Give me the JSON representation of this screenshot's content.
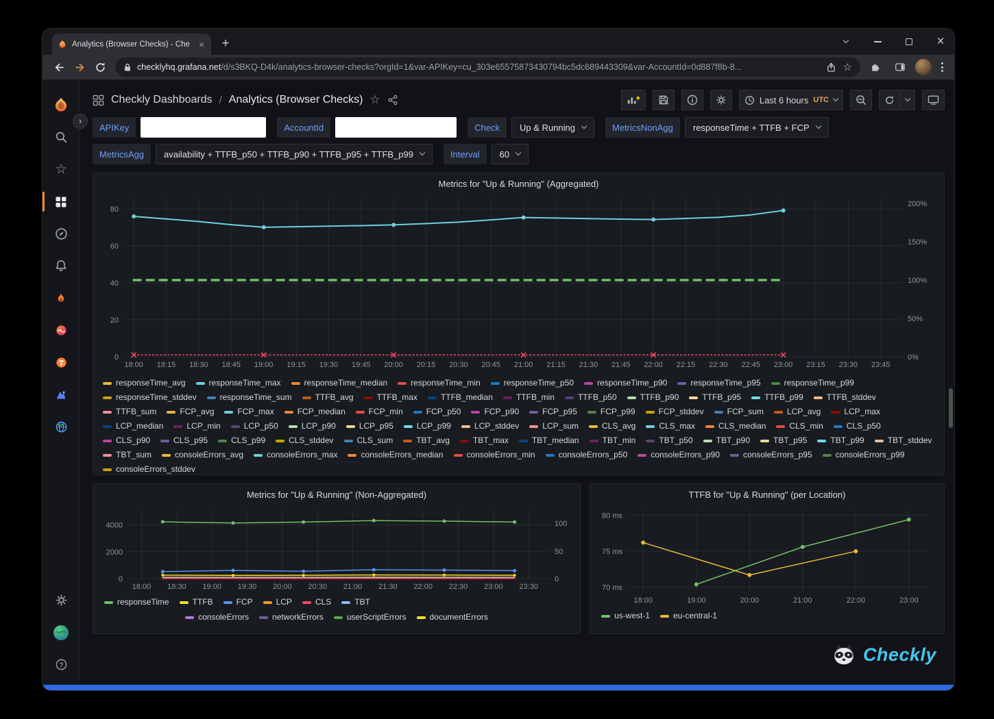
{
  "browser": {
    "tab_title": "Analytics (Browser Checks) - Che",
    "new_tab_label": "+",
    "url_domain": "checklyhq.grafana.net",
    "url_path": "/d/s3BKQ-D4k/analytics-browser-checks?orgId=1&var-APIKey=cu_303e65575873430794bc5dc689443309&var-AccountId=0d887f8b-8..."
  },
  "header": {
    "breadcrumb_root": "Checkly Dashboards",
    "breadcrumb_sep": "/",
    "breadcrumb_current": "Analytics (Browser Checks)",
    "time_range_label": "Last 6 hours",
    "timezone": "UTC"
  },
  "variables": {
    "apikey_label": "APIKey",
    "apikey_value": "",
    "accountid_label": "AccountId",
    "accountid_value": "",
    "check_label": "Check",
    "check_value": "Up & Running",
    "metricsnonagg_label": "MetricsNonAgg",
    "metricsnonagg_value": "responseTime + TTFB + FCP",
    "metricsagg_label": "MetricsAgg",
    "metricsagg_value": "availability + TTFB_p50 + TTFB_p90 + TTFB_p95 + TTFB_p99",
    "interval_label": "Interval",
    "interval_value": "60"
  },
  "footer": {
    "brand": "Checkly"
  },
  "colors": {
    "accent_orange": "#FF8833",
    "label_blue": "#6E9FFF",
    "checkly_cyan": "#45C6F0",
    "bottom_strip_blue": "#2F6BE8"
  },
  "chart_data": [
    {
      "type": "line",
      "title": "Metrics for \"Up & Running\" (Aggregated)",
      "xlim": [
        17.92,
        23.92
      ],
      "ylim": [
        0,
        86
      ],
      "ml": 36,
      "mr": 52,
      "xticks": [
        {
          "v": 18,
          "t": "18:00"
        },
        {
          "v": 18.25,
          "t": "18:15"
        },
        {
          "v": 18.5,
          "t": "18:30"
        },
        {
          "v": 18.75,
          "t": "18:45"
        },
        {
          "v": 19,
          "t": "19:00"
        },
        {
          "v": 19.25,
          "t": "19:15"
        },
        {
          "v": 19.5,
          "t": "19:30"
        },
        {
          "v": 19.75,
          "t": "19:45"
        },
        {
          "v": 20,
          "t": "20:00"
        },
        {
          "v": 20.25,
          "t": "20:15"
        },
        {
          "v": 20.5,
          "t": "20:30"
        },
        {
          "v": 20.75,
          "t": "20:45"
        },
        {
          "v": 21,
          "t": "21:00"
        },
        {
          "v": 21.25,
          "t": "21:15"
        },
        {
          "v": 21.5,
          "t": "21:30"
        },
        {
          "v": 21.75,
          "t": "21:45"
        },
        {
          "v": 22,
          "t": "22:00"
        },
        {
          "v": 22.25,
          "t": "22:15"
        },
        {
          "v": 22.5,
          "t": "22:30"
        },
        {
          "v": 22.75,
          "t": "22:45"
        },
        {
          "v": 23,
          "t": "23:00"
        },
        {
          "v": 23.25,
          "t": "23:15"
        },
        {
          "v": 23.5,
          "t": "23:30"
        },
        {
          "v": 23.75,
          "t": "23:45"
        }
      ],
      "yticks_left": [
        {
          "v": 0,
          "t": "0"
        },
        {
          "v": 20,
          "t": "20"
        },
        {
          "v": 40,
          "t": "40"
        },
        {
          "v": 60,
          "t": "60"
        },
        {
          "v": 80,
          "t": "80"
        }
      ],
      "yticks_right": [
        {
          "v": 0,
          "t": "0%"
        },
        {
          "v": 20.75,
          "t": "50%"
        },
        {
          "v": 41.5,
          "t": "100%"
        },
        {
          "v": 62.25,
          "t": "150%"
        },
        {
          "v": 83,
          "t": "200%"
        }
      ],
      "series": [
        {
          "name": "responseTime_avg",
          "color": "#6ED0E0",
          "width": 2,
          "points": [
            [
              18,
              76
            ],
            [
              18.25,
              74.6
            ],
            [
              18.5,
              73.2
            ],
            [
              18.75,
              71.5
            ],
            [
              19,
              70.1
            ],
            [
              19.25,
              70.4
            ],
            [
              19.5,
              70.7
            ],
            [
              19.75,
              71
            ],
            [
              20,
              71.4
            ],
            [
              20.25,
              72.1
            ],
            [
              20.5,
              72.9
            ],
            [
              20.75,
              74.1
            ],
            [
              21,
              75.4
            ],
            [
              21.25,
              75.1
            ],
            [
              21.5,
              74.8
            ],
            [
              21.75,
              74.5
            ],
            [
              22,
              74.3
            ],
            [
              22.25,
              74.9
            ],
            [
              22.5,
              75.5
            ],
            [
              22.75,
              76.8
            ],
            [
              23,
              79.2
            ]
          ],
          "markers": [
            [
              18,
              76
            ],
            [
              19,
              70.1
            ],
            [
              20,
              71.4
            ],
            [
              21,
              75.4
            ],
            [
              22,
              74.3
            ],
            [
              23,
              79.2
            ]
          ],
          "marker": "dot",
          "r": 3
        },
        {
          "name": "availability",
          "color": "#73BF69",
          "width": 3.5,
          "dash": [
            10,
            9
          ],
          "points": [
            [
              18,
              41.5
            ],
            [
              23,
              41.5
            ]
          ]
        },
        {
          "name": "consoleErrors",
          "color": "#F2495C",
          "width": 1.5,
          "dash": [
            2,
            3.5
          ],
          "points": [
            [
              18,
              1
            ],
            [
              23,
              1
            ]
          ],
          "markers": [
            [
              18,
              1
            ],
            [
              19,
              1
            ],
            [
              20,
              1
            ],
            [
              21,
              1
            ],
            [
              22,
              1
            ],
            [
              23,
              1
            ]
          ],
          "marker": "x"
        }
      ],
      "palette": [
        "#EAB839",
        "#6ED0E0",
        "#EF843C",
        "#E24D42",
        "#1F78C1",
        "#BA43A9",
        "#705DA0",
        "#508642",
        "#CCA300",
        "#447EBC",
        "#C15C17",
        "#890F02",
        "#0A437C",
        "#6D1F62",
        "#584477",
        "#B7DBAB",
        "#F4D598",
        "#70DBED",
        "#F9BA8F",
        "#F29191"
      ],
      "legend": [
        "responseTime_avg",
        "responseTime_max",
        "responseTime_median",
        "responseTime_min",
        "responseTime_p50",
        "responseTime_p90",
        "responseTime_p95",
        "responseTime_p99",
        "responseTime_stddev",
        "responseTime_sum",
        "TTFB_avg",
        "TTFB_max",
        "TTFB_median",
        "TTFB_min",
        "TTFB_p50",
        "TTFB_p90",
        "TTFB_p95",
        "TTFB_p99",
        "TTFB_stddev",
        "TTFB_sum",
        "FCP_avg",
        "FCP_max",
        "FCP_median",
        "FCP_min",
        "FCP_p50",
        "FCP_p90",
        "FCP_p95",
        "FCP_p99",
        "FCP_stddev",
        "FCP_sum",
        "LCP_avg",
        "LCP_max",
        "LCP_median",
        "LCP_min",
        "LCP_p50",
        "LCP_p90",
        "LCP_p95",
        "LCP_p99",
        "LCP_stddev",
        "LCP_sum",
        "CLS_avg",
        "CLS_max",
        "CLS_median",
        "CLS_min",
        "CLS_p50",
        "CLS_p90",
        "CLS_p95",
        "CLS_p99",
        "CLS_stddev",
        "CLS_sum",
        "TBT_avg",
        "TBT_max",
        "TBT_median",
        "TBT_min",
        "TBT_p50",
        "TBT_p90",
        "TBT_p95",
        "TBT_p99",
        "TBT_stddev",
        "TBT_sum",
        "consoleErrors_avg",
        "consoleErrors_max",
        "consoleErrors_median",
        "consoleErrors_min",
        "consoleErrors_p50",
        "consoleErrors_p90",
        "consoleErrors_p95",
        "consoleErrors_p99",
        "consoleErrors_stddev"
      ]
    },
    {
      "type": "line",
      "title": "Metrics for \"Up & Running\" (Non-Aggregated)",
      "xlim": [
        17.8,
        23.8
      ],
      "ylim": [
        0,
        5200
      ],
      "ml": 42,
      "mr": 36,
      "xticks": [
        {
          "v": 18,
          "t": "18:00"
        },
        {
          "v": 18.5,
          "t": "18:30"
        },
        {
          "v": 19,
          "t": "19:00"
        },
        {
          "v": 19.5,
          "t": "19:30"
        },
        {
          "v": 20,
          "t": "20:00"
        },
        {
          "v": 20.5,
          "t": "20:30"
        },
        {
          "v": 21,
          "t": "21:00"
        },
        {
          "v": 21.5,
          "t": "21:30"
        },
        {
          "v": 22,
          "t": "22:00"
        },
        {
          "v": 22.5,
          "t": "22:30"
        },
        {
          "v": 23,
          "t": "23:00"
        },
        {
          "v": 23.5,
          "t": "23:30"
        }
      ],
      "yticks_left": [
        {
          "v": 0,
          "t": "0"
        },
        {
          "v": 2000,
          "t": "2000"
        },
        {
          "v": 4000,
          "t": "4000"
        }
      ],
      "yticks_right": [
        {
          "v": 0,
          "t": "0"
        },
        {
          "v": 2050,
          "t": "50"
        },
        {
          "v": 4120,
          "t": "100"
        }
      ],
      "series": [
        {
          "name": "responseTime",
          "color": "#73BF69",
          "width": 1.5,
          "points": [
            [
              18.3,
              4230
            ],
            [
              19.3,
              4140
            ],
            [
              20.3,
              4210
            ],
            [
              21.3,
              4320
            ],
            [
              22.3,
              4280
            ],
            [
              23.3,
              4210
            ]
          ],
          "markers": [
            [
              18.3,
              4230
            ],
            [
              19.3,
              4140
            ],
            [
              20.3,
              4210
            ],
            [
              21.3,
              4320
            ],
            [
              22.3,
              4280
            ],
            [
              23.3,
              4210
            ]
          ],
          "marker": "dot",
          "r": 2.5
        },
        {
          "name": "FCP",
          "color": "#5794F2",
          "width": 1.5,
          "points": [
            [
              18.3,
              520
            ],
            [
              19.3,
              610
            ],
            [
              20.3,
              545
            ],
            [
              21.3,
              665
            ],
            [
              22.3,
              635
            ],
            [
              23.3,
              590
            ]
          ],
          "markers": [
            [
              18.3,
              520
            ],
            [
              19.3,
              610
            ],
            [
              20.3,
              545
            ],
            [
              21.3,
              665
            ],
            [
              22.3,
              635
            ],
            [
              23.3,
              590
            ]
          ],
          "marker": "dot",
          "r": 2.5
        },
        {
          "name": "TTFB",
          "color": "#FADE2A",
          "width": 1.5,
          "points": [
            [
              18.3,
              260
            ],
            [
              19.3,
              240
            ],
            [
              20.3,
              250
            ],
            [
              21.3,
              275
            ],
            [
              22.3,
              265
            ],
            [
              23.3,
              250
            ]
          ],
          "markers": [
            [
              18.3,
              260
            ],
            [
              19.3,
              240
            ],
            [
              20.3,
              250
            ],
            [
              21.3,
              275
            ],
            [
              22.3,
              265
            ],
            [
              23.3,
              250
            ]
          ],
          "marker": "dot",
          "r": 2
        },
        {
          "name": "LCP",
          "color": "#FF9830",
          "width": 1.5,
          "points": [
            [
              18.3,
              110
            ],
            [
              19.3,
              100
            ],
            [
              20.3,
              105
            ],
            [
              21.3,
              115
            ],
            [
              22.3,
              110
            ],
            [
              23.3,
              105
            ]
          ]
        },
        {
          "name": "TBT",
          "color": "#8AB8FF",
          "width": 1.5,
          "points": [
            [
              18.3,
              55
            ],
            [
              23.3,
              55
            ]
          ]
        },
        {
          "name": "CLS",
          "color": "#F2495C",
          "width": 1.5,
          "points": [
            [
              18.3,
              15
            ],
            [
              23.3,
              15
            ]
          ]
        }
      ],
      "legend_row1": [
        {
          "t": "responseTime",
          "c": "#73BF69"
        },
        {
          "t": "TTFB",
          "c": "#FADE2A"
        },
        {
          "t": "FCP",
          "c": "#5794F2"
        },
        {
          "t": "LCP",
          "c": "#FF9830"
        },
        {
          "t": "CLS",
          "c": "#F2495C"
        },
        {
          "t": "TBT",
          "c": "#8AB8FF"
        }
      ],
      "legend_row2": [
        {
          "t": "consoleErrors",
          "c": "#B877D9"
        },
        {
          "t": "networkErrors",
          "c": "#705DA0"
        },
        {
          "t": "userScriptErrors",
          "c": "#56A64B"
        },
        {
          "t": "documentErrors",
          "c": "#FADE2A"
        }
      ]
    },
    {
      "type": "line",
      "title": "TTFB for \"Up & Running\" (per Location)",
      "xlim": [
        17.7,
        23.35
      ],
      "ylim": [
        69.3,
        80.9
      ],
      "ml": 46,
      "mr": 16,
      "xticks": [
        {
          "v": 18,
          "t": "18:00"
        },
        {
          "v": 19,
          "t": "19:00"
        },
        {
          "v": 20,
          "t": "20:00"
        },
        {
          "v": 21,
          "t": "21:00"
        },
        {
          "v": 22,
          "t": "22:00"
        },
        {
          "v": 23,
          "t": "23:00"
        }
      ],
      "yticks_left": [
        {
          "v": 70,
          "t": "70 ms"
        },
        {
          "v": 75,
          "t": "75 ms"
        },
        {
          "v": 80,
          "t": "80 ms"
        }
      ],
      "series": [
        {
          "name": "us-west-1",
          "color": "#73BF69",
          "width": 1.5,
          "points": [
            [
              19,
              70.4
            ],
            [
              21,
              75.6
            ],
            [
              23,
              79.4
            ]
          ],
          "markers": [
            [
              19,
              70.4
            ],
            [
              21,
              75.6
            ],
            [
              23,
              79.4
            ]
          ],
          "marker": "dot",
          "r": 3
        },
        {
          "name": "eu-central-1",
          "color": "#EAB839",
          "width": 1.5,
          "points": [
            [
              18,
              76.2
            ],
            [
              20,
              71.7
            ],
            [
              22,
              75
            ]
          ],
          "markers": [
            [
              18,
              76.2
            ],
            [
              20,
              71.7
            ],
            [
              22,
              75
            ]
          ],
          "marker": "dot",
          "r": 3
        }
      ],
      "legend": [
        {
          "t": "us-west-1",
          "c": "#73BF69"
        },
        {
          "t": "eu-central-1",
          "c": "#EAB839"
        }
      ]
    }
  ]
}
